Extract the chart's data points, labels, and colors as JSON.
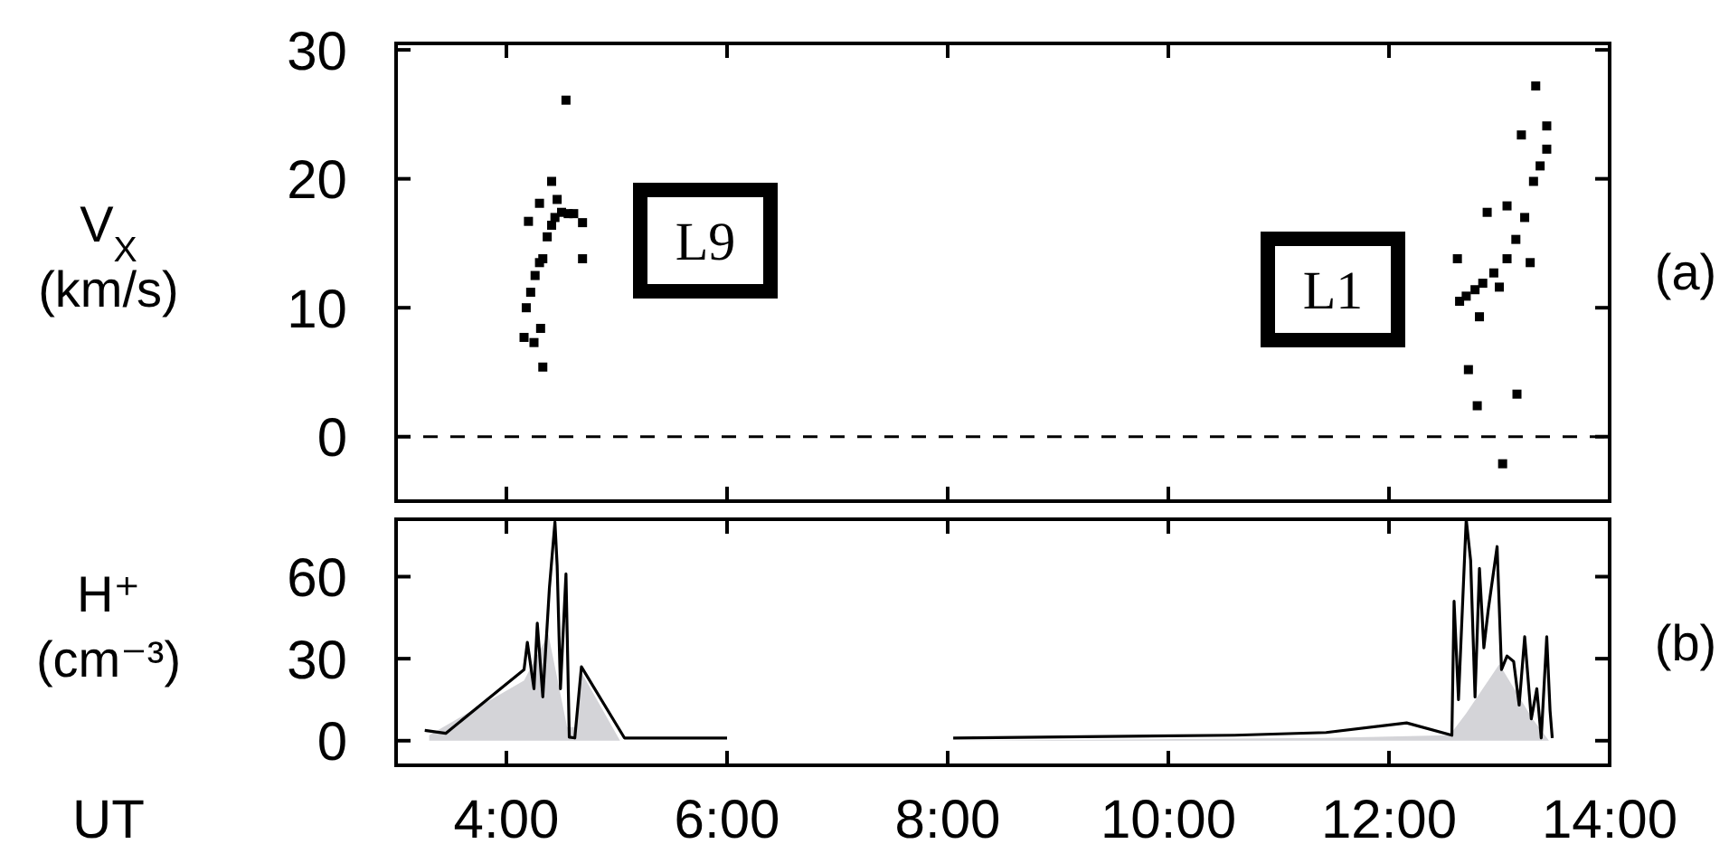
{
  "chart_data": [
    {
      "type": "scatter",
      "ylabel": "V$_{X}$ (km/s)",
      "marker": "square",
      "xlim": [
        3,
        14
      ],
      "xticks": [
        {
          "value": 4,
          "label": null
        },
        {
          "value": 6,
          "label": null
        },
        {
          "value": 8,
          "label": null
        },
        {
          "value": 10,
          "label": null
        },
        {
          "value": 12,
          "label": null
        },
        {
          "value": 14,
          "label": null
        }
      ],
      "ylim": [
        -5,
        30.5
      ],
      "yticks": [
        0,
        10,
        20,
        30
      ],
      "tick_labels": "y",
      "series": [
        {
          "color": "#000000",
          "x": [
            4.18,
            4.22,
            4.26,
            4.3,
            4.33,
            4.37,
            4.41,
            4.44,
            4.5,
            4.56,
            4.61,
            4.69,
            4.54,
            4.41,
            4.3,
            4.2,
            4.46,
            4.69,
            4.16,
            4.31,
            4.33,
            4.25,
            12.64,
            12.7,
            12.78,
            12.85,
            12.95,
            13.07,
            13.15,
            13.23,
            13.31,
            13.37,
            13.43,
            13.33,
            13.2,
            13.43,
            13.07,
            12.89,
            12.62,
            13.0,
            12.82,
            13.28,
            12.72,
            12.8,
            13.16,
            13.03
          ],
          "values": [
            10.0,
            11.2,
            12.5,
            13.5,
            13.8,
            15.5,
            16.4,
            17.0,
            17.4,
            17.3,
            17.3,
            16.6,
            26.1,
            19.8,
            18.1,
            16.7,
            18.4,
            13.8,
            7.7,
            8.4,
            5.4,
            7.3,
            10.5,
            10.9,
            11.4,
            11.9,
            12.7,
            13.8,
            15.3,
            17.0,
            19.8,
            21.0,
            22.3,
            27.2,
            23.4,
            24.1,
            17.9,
            17.4,
            13.8,
            11.6,
            9.3,
            13.5,
            5.2,
            2.4,
            3.3,
            -2.1
          ]
        }
      ],
      "ref_lines": [
        {
          "axis": "y",
          "value": 0,
          "line_style": "dashed",
          "color": "#000000"
        }
      ],
      "annotations": [
        "L9",
        "L1",
        "(a)"
      ]
    },
    {
      "type": "line",
      "xlabel": "UT",
      "ylabel": "H⁺ (cm⁻³)",
      "xlim": [
        3,
        14
      ],
      "xticks": [
        {
          "value": 4,
          "label": "4:00"
        },
        {
          "value": 6,
          "label": "6:00"
        },
        {
          "value": 8,
          "label": "8:00"
        },
        {
          "value": 10,
          "label": "10:00"
        },
        {
          "value": 12,
          "label": "12:00"
        },
        {
          "value": 14,
          "label": "14:00"
        }
      ],
      "ylim": [
        -9,
        81
      ],
      "yticks": [
        0,
        30,
        60
      ],
      "series": [
        {
          "type": "area",
          "color": "#d4d4d8",
          "x": [
            3.3,
            4.16,
            4.38,
            4.55,
            4.62,
            4.68,
            5.03,
            8.05,
            11.4,
            12.55,
            12.7,
            13.0,
            13.3,
            13.45
          ],
          "values": [
            2,
            22,
            39,
            5,
            5,
            25,
            0,
            0,
            1,
            2,
            10,
            28,
            8,
            0
          ]
        },
        {
          "color": "#000000",
          "x": [
            3.26,
            3.45,
            4.16,
            4.19,
            4.25,
            4.28,
            4.33,
            4.39,
            4.44,
            4.46,
            4.49,
            4.54,
            4.57,
            4.62,
            4.68,
            5.07,
            6.0,
            7.0,
            8.05,
            10.6,
            11.43,
            12.16,
            12.57,
            12.59,
            12.63,
            12.7,
            12.74,
            12.78,
            12.82,
            12.86,
            12.9,
            12.98,
            13.02,
            13.07,
            13.13,
            13.18,
            13.23,
            13.29,
            13.34,
            13.38,
            13.43,
            13.46,
            13.48
          ],
          "values": [
            3.8,
            2.7,
            26,
            36,
            19,
            43,
            16,
            56,
            80,
            64,
            19,
            61,
            1.3,
            1,
            27,
            1,
            1,
            null,
            1,
            2,
            3,
            6.5,
            2,
            51,
            15,
            81,
            66,
            16,
            63,
            34,
            48,
            71,
            26,
            31,
            29,
            13,
            38,
            8,
            19,
            1,
            38,
            11,
            1
          ]
        }
      ],
      "annotations": [
        "(b)"
      ]
    }
  ]
}
